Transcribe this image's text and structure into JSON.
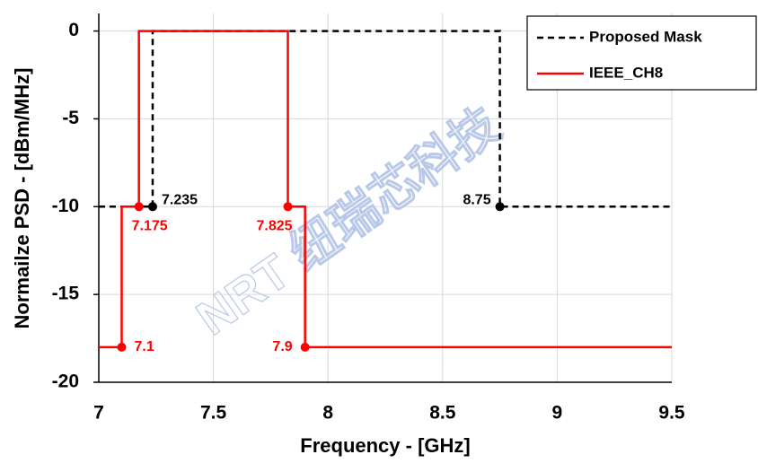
{
  "chart_data": {
    "type": "line",
    "x_label": "Frequency - [GHz]",
    "y_label": "Normailze PSD - [dBm/MHz]",
    "watermark": "NRT 纽瑞芯科技",
    "xlim": [
      7,
      9.5
    ],
    "xticks": [
      7,
      7.5,
      8,
      8.5,
      9,
      9.5
    ],
    "ylim": [
      -20,
      1
    ],
    "yticks": [
      0,
      -5,
      -10,
      -15,
      -20
    ],
    "grid": true,
    "legend": "upper right",
    "series": [
      {
        "name": "Proposed Mask",
        "color": "#000000",
        "dashed": true,
        "x": [
          7,
          7.235,
          7.235,
          8.75,
          8.75,
          9.5
        ],
        "values": [
          -10,
          -10,
          0,
          0,
          -10,
          -10
        ],
        "markers": [
          {
            "x": 7.235,
            "y": -10,
            "label": "7.235"
          },
          {
            "x": 8.75,
            "y": -10,
            "label": "8.75"
          }
        ]
      },
      {
        "name": "IEEE_CH8",
        "color": "#ff0000",
        "dashed": false,
        "x": [
          7,
          7.1,
          7.1,
          7.175,
          7.175,
          7.825,
          7.825,
          7.9,
          7.9,
          9.5
        ],
        "values": [
          -18,
          -18,
          -10,
          -10,
          0,
          0,
          -10,
          -10,
          -18,
          -18
        ],
        "markers": [
          {
            "x": 7.175,
            "y": -10,
            "label": "7.175"
          },
          {
            "x": 7.825,
            "y": -10,
            "label": "7.825"
          },
          {
            "x": 7.1,
            "y": -18,
            "label": "7.1"
          },
          {
            "x": 7.9,
            "y": -18,
            "label": "7.9"
          }
        ]
      }
    ]
  }
}
